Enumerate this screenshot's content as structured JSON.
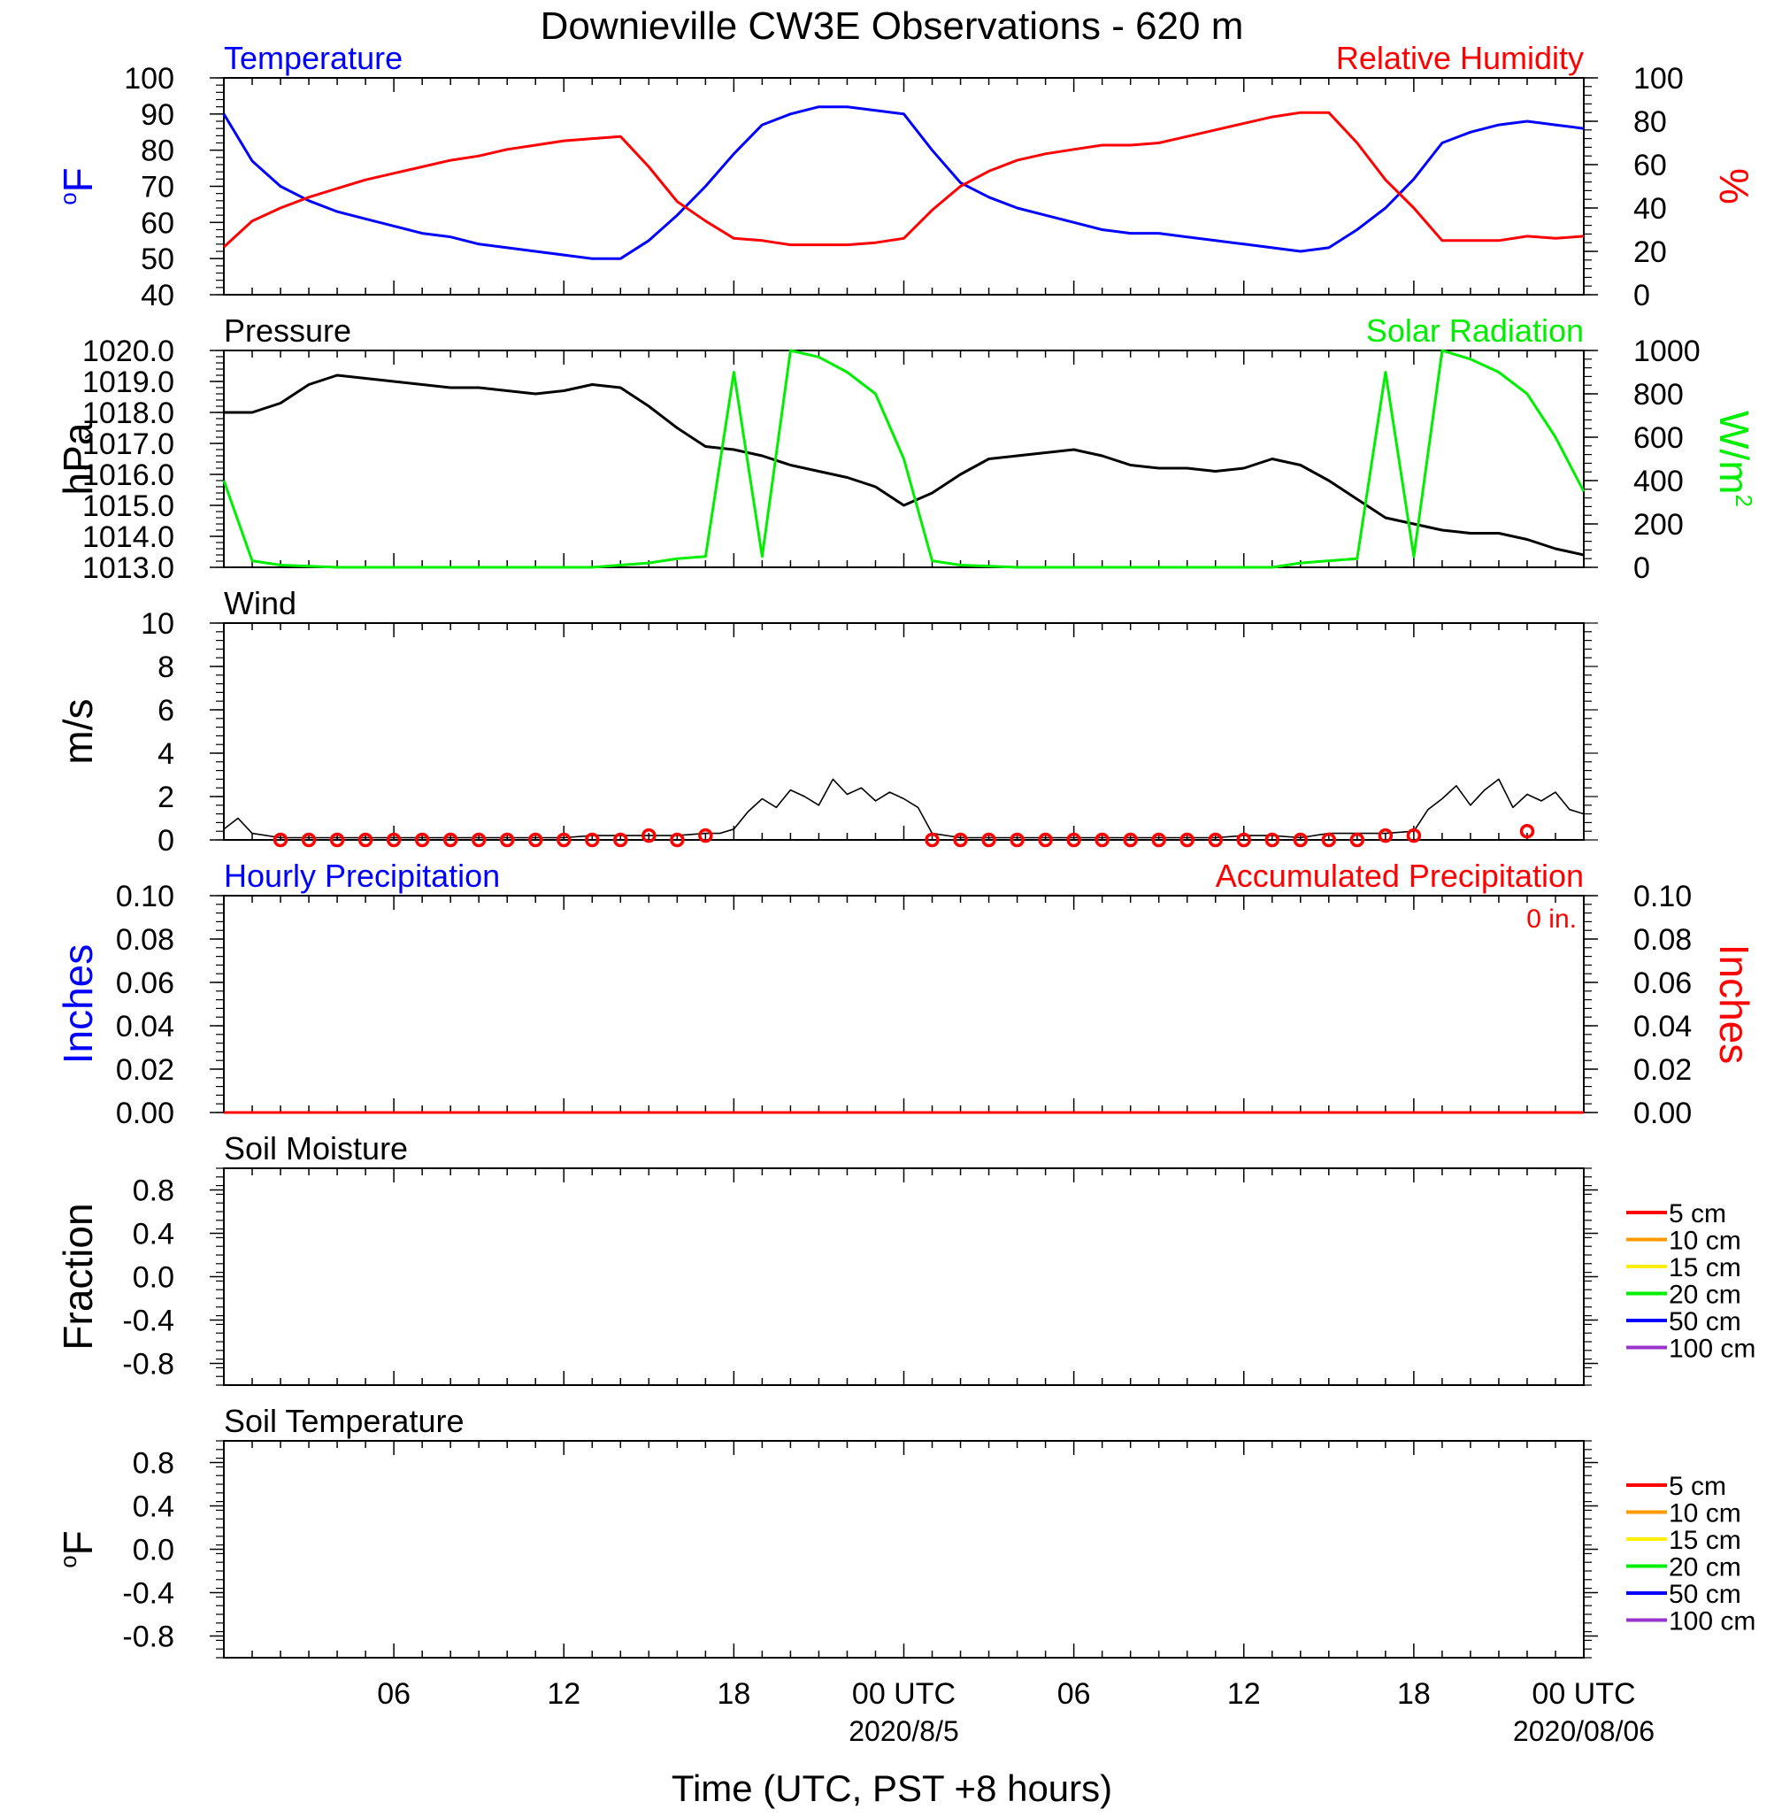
{
  "title": "Downieville CW3E Observations - 620 m",
  "xaxis": {
    "label": "Time (UTC, PST +8 hours)",
    "range_hours": [
      0,
      48
    ],
    "ticks": [
      {
        "h": 6,
        "label": "06"
      },
      {
        "h": 12,
        "label": "12"
      },
      {
        "h": 18,
        "label": "18"
      },
      {
        "h": 24,
        "label": "00 UTC",
        "date": "2020/8/5"
      },
      {
        "h": 30,
        "label": "06"
      },
      {
        "h": 36,
        "label": "12"
      },
      {
        "h": 42,
        "label": "18"
      },
      {
        "h": 48,
        "label": "00 UTC",
        "date": "2020/08/06"
      }
    ]
  },
  "colors": {
    "temperature": "#0000ff",
    "humidity": "#ff0000",
    "pressure": "#000000",
    "solar": "#00ee00",
    "wind": "#000000",
    "wind_marker": "#ff0000",
    "hourly_precip": "#0000ff",
    "accum_precip": "#ff0000",
    "soil_5": "#ff0000",
    "soil_10": "#ff9900",
    "soil_15": "#ffee00",
    "soil_20": "#00ee00",
    "soil_50": "#0000ff",
    "soil_100": "#9933cc"
  },
  "chart_data": [
    {
      "panel": "temperature-humidity",
      "type": "line",
      "x": [
        0,
        1,
        2,
        3,
        4,
        5,
        6,
        7,
        8,
        9,
        10,
        11,
        12,
        13,
        14,
        15,
        16,
        17,
        18,
        19,
        20,
        21,
        22,
        23,
        24,
        25,
        26,
        27,
        28,
        29,
        30,
        31,
        32,
        33,
        34,
        35,
        36,
        37,
        38,
        39,
        40,
        41,
        42,
        43,
        44,
        45,
        46,
        47,
        48
      ],
      "series": [
        {
          "name": "Temperature",
          "axis": "left",
          "color": "#0000ff",
          "values": [
            90,
            77,
            70,
            66,
            63,
            61,
            59,
            57,
            56,
            54,
            53,
            52,
            51,
            50,
            50,
            55,
            62,
            70,
            79,
            87,
            90,
            92,
            92,
            91,
            90,
            80,
            71,
            67,
            64,
            62,
            60,
            58,
            57,
            57,
            56,
            55,
            54,
            53,
            52,
            53,
            58,
            64,
            72,
            82,
            85,
            87,
            88,
            87,
            86
          ]
        },
        {
          "name": "Relative Humidity",
          "axis": "right",
          "color": "#ff0000",
          "values": [
            22,
            34,
            40,
            45,
            49,
            53,
            56,
            59,
            62,
            64,
            67,
            69,
            71,
            72,
            73,
            59,
            43,
            34,
            26,
            25,
            23,
            23,
            23,
            24,
            26,
            39,
            50,
            57,
            62,
            65,
            67,
            69,
            69,
            70,
            73,
            76,
            79,
            82,
            84,
            84,
            70,
            53,
            40,
            25,
            25,
            25,
            27,
            26,
            27
          ]
        }
      ],
      "left_axis": {
        "label": "oF",
        "ylim": [
          40,
          100
        ],
        "ticks": [
          "40",
          "50",
          "60",
          "70",
          "80",
          "90",
          "100"
        ]
      },
      "right_axis": {
        "label": "%",
        "ylim": [
          0,
          100
        ],
        "ticks": [
          "0",
          "20",
          "40",
          "60",
          "80",
          "100"
        ]
      }
    },
    {
      "panel": "pressure-solar",
      "type": "line",
      "x": [
        0,
        1,
        2,
        3,
        4,
        5,
        6,
        7,
        8,
        9,
        10,
        11,
        12,
        13,
        14,
        15,
        16,
        17,
        18,
        19,
        20,
        21,
        22,
        23,
        24,
        25,
        26,
        27,
        28,
        29,
        30,
        31,
        32,
        33,
        34,
        35,
        36,
        37,
        38,
        39,
        40,
        41,
        42,
        43,
        44,
        45,
        46,
        47,
        48
      ],
      "series": [
        {
          "name": "Pressure",
          "axis": "left",
          "color": "#000000",
          "values": [
            1018.0,
            1018.0,
            1018.3,
            1018.9,
            1019.2,
            1019.1,
            1019.0,
            1018.9,
            1018.8,
            1018.8,
            1018.7,
            1018.6,
            1018.7,
            1018.9,
            1018.8,
            1018.2,
            1017.5,
            1016.9,
            1016.8,
            1016.6,
            1016.3,
            1016.1,
            1015.9,
            1015.6,
            1015.0,
            1015.4,
            1016.0,
            1016.5,
            1016.6,
            1016.7,
            1016.8,
            1016.6,
            1016.3,
            1016.2,
            1016.2,
            1016.1,
            1016.2,
            1016.5,
            1016.3,
            1015.8,
            1015.2,
            1014.6,
            1014.4,
            1014.2,
            1014.1,
            1014.1,
            1013.9,
            1013.6,
            1013.4
          ]
        },
        {
          "name": "Solar Radiation",
          "axis": "right",
          "color": "#00ee00",
          "values": [
            400,
            30,
            10,
            5,
            0,
            0,
            0,
            0,
            0,
            0,
            0,
            0,
            0,
            0,
            10,
            20,
            40,
            50,
            900,
            50,
            1000,
            970,
            900,
            800,
            500,
            30,
            10,
            5,
            0,
            0,
            0,
            0,
            0,
            0,
            0,
            0,
            0,
            0,
            20,
            30,
            40,
            900,
            50,
            1000,
            960,
            900,
            800,
            600,
            350
          ]
        }
      ],
      "left_axis": {
        "label": "hPa",
        "ylim": [
          1013.0,
          1020.0
        ],
        "ticks": [
          "1013.0",
          "1014.0",
          "1015.0",
          "1016.0",
          "1017.0",
          "1018.0",
          "1019.0",
          "1020.0"
        ]
      },
      "right_axis": {
        "label": "W/m2",
        "ylim": [
          0,
          1000
        ],
        "ticks": [
          "0",
          "200",
          "400",
          "600",
          "800",
          "1000"
        ]
      }
    },
    {
      "panel": "wind",
      "type": "line",
      "title": "Wind",
      "ylabel": "m/s",
      "ylim": [
        0,
        10
      ],
      "ticks": [
        "0",
        "2",
        "4",
        "6",
        "8",
        "10"
      ],
      "x": [
        0,
        0.5,
        1,
        2,
        3,
        4,
        5,
        6,
        7,
        8,
        9,
        10,
        11,
        12,
        13,
        14,
        15,
        16,
        17,
        17.5,
        18,
        18.5,
        19,
        19.5,
        20,
        20.5,
        21,
        21.5,
        22,
        22.5,
        23,
        23.5,
        24,
        24.5,
        25,
        26,
        27,
        28,
        29,
        30,
        31,
        32,
        33,
        34,
        35,
        36,
        37,
        38,
        39,
        40,
        41,
        42,
        42.5,
        43,
        43.5,
        44,
        44.5,
        45,
        45.5,
        46,
        46.5,
        47,
        47.5,
        48
      ],
      "values": [
        0.5,
        1.0,
        0.3,
        0.1,
        0.1,
        0.1,
        0.1,
        0.1,
        0.1,
        0.1,
        0.1,
        0.1,
        0.1,
        0.1,
        0.2,
        0.2,
        0.2,
        0.2,
        0.3,
        0.3,
        0.5,
        1.3,
        1.9,
        1.5,
        2.3,
        2.0,
        1.6,
        2.8,
        2.1,
        2.4,
        1.8,
        2.2,
        1.9,
        1.5,
        0.3,
        0.1,
        0.1,
        0.1,
        0.1,
        0.1,
        0.1,
        0.1,
        0.1,
        0.1,
        0.1,
        0.2,
        0.2,
        0.1,
        0.3,
        0.3,
        0.3,
        0.4,
        1.4,
        1.9,
        2.5,
        1.6,
        2.3,
        2.8,
        1.5,
        2.1,
        1.8,
        2.2,
        1.4,
        1.2
      ],
      "hourly_markers": {
        "x": [
          2,
          3,
          4,
          5,
          6,
          7,
          8,
          9,
          10,
          11,
          12,
          13,
          14,
          15,
          16,
          17,
          25,
          26,
          27,
          28,
          29,
          30,
          31,
          32,
          33,
          34,
          35,
          36,
          37,
          38,
          39,
          40,
          41,
          42,
          46
        ],
        "values": [
          0,
          0,
          0,
          0,
          0,
          0,
          0,
          0,
          0,
          0,
          0,
          0,
          0,
          0.2,
          0,
          0.2,
          0,
          0,
          0,
          0,
          0,
          0,
          0,
          0,
          0,
          0,
          0,
          0,
          0,
          0,
          0,
          0,
          0.2,
          0.2,
          0.4
        ]
      }
    },
    {
      "panel": "precipitation",
      "type": "line",
      "left_title": "Hourly Precipitation",
      "right_title": "Accumulated Precipitation",
      "total_label": "0 in.",
      "x": [
        0,
        48
      ],
      "series": [
        {
          "name": "Hourly Precipitation",
          "axis": "left",
          "color": "#0000ff",
          "values": [
            0,
            0
          ]
        },
        {
          "name": "Accumulated Precipitation",
          "axis": "right",
          "color": "#ff0000",
          "values": [
            0,
            0
          ]
        }
      ],
      "left_axis": {
        "label": "Inches",
        "ylim": [
          0,
          0.1
        ],
        "ticks": [
          "0.00",
          "0.02",
          "0.04",
          "0.06",
          "0.08",
          "0.10"
        ]
      },
      "right_axis": {
        "label": "Inches",
        "ylim": [
          0,
          0.1
        ],
        "ticks": [
          "0.00",
          "0.02",
          "0.04",
          "0.06",
          "0.08",
          "0.10"
        ]
      }
    },
    {
      "panel": "soil-moisture",
      "type": "line",
      "title": "Soil Moisture",
      "ylabel": "Fraction",
      "ylim": [
        -1.0,
        1.0
      ],
      "ticks": [
        "-0.8",
        "-0.4",
        "0.0",
        "0.4",
        "0.8"
      ],
      "legend": [
        "5 cm",
        "10 cm",
        "15 cm",
        "20 cm",
        "50 cm",
        "100 cm"
      ],
      "series": []
    },
    {
      "panel": "soil-temperature",
      "type": "line",
      "title": "Soil Temperature",
      "ylabel": "oF",
      "ylim": [
        -1.0,
        1.0
      ],
      "ticks": [
        "-0.8",
        "-0.4",
        "0.0",
        "0.4",
        "0.8"
      ],
      "legend": [
        "5 cm",
        "10 cm",
        "15 cm",
        "20 cm",
        "50 cm",
        "100 cm"
      ],
      "series": []
    }
  ]
}
